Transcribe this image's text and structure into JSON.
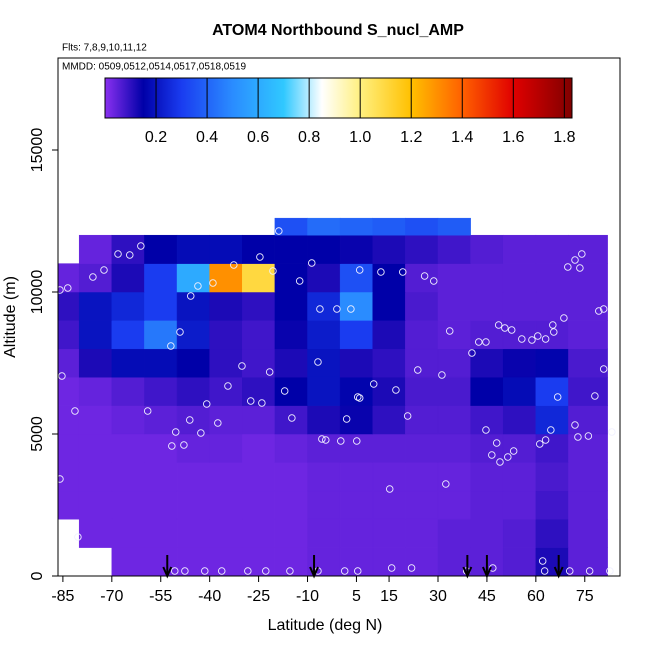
{
  "chart_data": {
    "type": "heatmap",
    "title": "ATOM4 Northbound S_nucl_AMP",
    "subtitle": "Flts: 7,8,9,10,11,12",
    "annotation": "MMDD: 0509,0512,0514,0517,0518,0519",
    "xlabel": "Latitude (deg N)",
    "ylabel": "Altitude (m)",
    "xlim": [
      -86.5,
      85.8
    ],
    "ylim": [
      0,
      18240
    ],
    "xticks": [
      -85,
      -70,
      -55,
      -40,
      -25,
      -10,
      5,
      15,
      30,
      45,
      60,
      75
    ],
    "yticks": [
      0,
      5000,
      10000,
      15000
    ],
    "x_edges": [
      -87,
      -80,
      -70,
      -60,
      -50,
      -40,
      -30,
      -20,
      -10,
      0,
      10,
      20,
      30,
      40,
      50,
      60,
      70,
      82
    ],
    "y_edges": [
      0,
      1000,
      2000,
      3000,
      4000,
      5000,
      6000,
      7000,
      8000,
      9000,
      10000,
      11000,
      12000,
      12600
    ],
    "z": [
      [
        null,
        null,
        0.03,
        0.03,
        0.03,
        0.03,
        0.03,
        0.03,
        0.04,
        0.04,
        0.04,
        0.04,
        0.05,
        0.05,
        0.06,
        0.12,
        0.05
      ],
      [
        null,
        0.03,
        0.03,
        0.03,
        0.03,
        0.03,
        0.03,
        0.03,
        0.04,
        0.04,
        0.04,
        0.04,
        0.05,
        0.05,
        0.06,
        0.1,
        0.05
      ],
      [
        0.03,
        0.03,
        0.03,
        0.03,
        0.03,
        0.03,
        0.03,
        0.03,
        0.04,
        0.04,
        0.04,
        0.04,
        0.04,
        0.05,
        0.05,
        0.08,
        0.05
      ],
      [
        0.03,
        0.03,
        0.03,
        0.03,
        0.03,
        0.03,
        0.03,
        0.03,
        0.04,
        0.04,
        0.04,
        0.04,
        0.04,
        0.05,
        0.05,
        0.07,
        0.05
      ],
      [
        0.03,
        0.03,
        0.03,
        0.03,
        0.04,
        0.04,
        0.03,
        0.04,
        0.05,
        0.05,
        0.05,
        0.05,
        0.05,
        0.06,
        0.06,
        0.08,
        0.05
      ],
      [
        0.03,
        0.03,
        0.04,
        0.05,
        0.06,
        0.05,
        0.05,
        0.08,
        0.12,
        0.14,
        0.1,
        0.06,
        0.06,
        0.08,
        0.1,
        0.25,
        0.06
      ],
      [
        0.03,
        0.04,
        0.06,
        0.08,
        0.1,
        0.08,
        0.1,
        0.15,
        0.2,
        0.16,
        0.12,
        0.07,
        0.07,
        0.15,
        0.18,
        0.3,
        0.08
      ],
      [
        0.05,
        0.12,
        0.18,
        0.18,
        0.15,
        0.1,
        0.08,
        0.12,
        0.2,
        0.12,
        0.1,
        0.06,
        0.06,
        0.12,
        0.14,
        0.16,
        0.07
      ],
      [
        0.08,
        0.2,
        0.3,
        0.45,
        0.22,
        0.1,
        0.08,
        0.14,
        0.22,
        0.3,
        0.12,
        0.06,
        0.05,
        0.06,
        0.06,
        0.06,
        0.05
      ],
      [
        0.1,
        0.2,
        0.25,
        0.3,
        0.2,
        0.12,
        0.1,
        0.15,
        0.25,
        0.5,
        0.15,
        0.07,
        0.05,
        0.05,
        0.05,
        0.05,
        0.05
      ],
      [
        0.04,
        0.06,
        0.12,
        0.3,
        0.6,
        1.3,
        1.1,
        0.15,
        0.12,
        0.35,
        0.15,
        0.06,
        0.05,
        0.05,
        0.05,
        0.05,
        0.05
      ],
      [
        null,
        0.04,
        0.1,
        0.15,
        0.18,
        0.18,
        0.15,
        0.15,
        0.15,
        0.14,
        0.12,
        0.1,
        0.08,
        0.06,
        0.05,
        0.05,
        0.05
      ],
      [
        null,
        null,
        null,
        null,
        null,
        null,
        null,
        0.35,
        0.42,
        0.4,
        0.38,
        0.35,
        0.38,
        null,
        null,
        null,
        null
      ]
    ],
    "colormap": [
      [
        0,
        "#8a30f0"
      ],
      [
        0.15,
        "#0000a8"
      ],
      [
        0.3,
        "#1a3cf0"
      ],
      [
        0.5,
        "#2a8cff"
      ],
      [
        0.7,
        "#30c8ff"
      ],
      [
        0.85,
        "#ffffff"
      ],
      [
        1.0,
        "#fff080"
      ],
      [
        1.2,
        "#ffc000"
      ],
      [
        1.4,
        "#ff6000"
      ],
      [
        1.6,
        "#e00000"
      ],
      [
        1.83,
        "#800000"
      ]
    ],
    "colorbar": {
      "lim": [
        0,
        1.83
      ],
      "ticks": [
        0.2,
        0.4,
        0.6,
        0.8,
        {
          "value": 1,
          "label": "1.0"
        },
        1.2,
        1.4,
        1.6,
        1.8
      ]
    },
    "points": {
      "x": [
        -50.7,
        -47.6,
        -41.5,
        -36.3,
        -28.3,
        -22.8,
        -15.4,
        -6.8,
        1.4,
        5.4,
        15.8,
        21.9,
        38.8,
        46.8,
        62.7,
        70.4,
        76.5,
        82.7,
        -80.4,
        -85.9,
        15.2,
        32.4,
        62.1,
        -81.3,
        -59,
        -51.6,
        -50.4,
        -47.9,
        -46.1,
        -42.7,
        -40.9,
        -37.5,
        -34.4,
        -30.1,
        -27.4,
        -24,
        -21.6,
        -17,
        -14.8,
        -6.8,
        -5.6,
        -4.4,
        0.2,
        2,
        5.1,
        5.4,
        10.3,
        17.1,
        20.7,
        23.8,
        31.2,
        44.7,
        46.5,
        48,
        49,
        51.4,
        53.2,
        61.2,
        63,
        64.6,
        66.7,
        72,
        72.9,
        76.1,
        78.1,
        80.8,
        83.3,
        -85.9,
        -83.5,
        -75.8,
        -72.4,
        -68.1,
        -64.5,
        -61.1,
        -51.9,
        -49.1,
        -45.8,
        -43.6,
        -39,
        -32.6,
        -24.6,
        -20.6,
        -18.8,
        -12.4,
        -8.7,
        -6.2,
        -1,
        3.3,
        6,
        6,
        12.5,
        19.2,
        25.9,
        28.7,
        33.6,
        40.4,
        42.5,
        44.7,
        48.6,
        50.5,
        52.6,
        55.7,
        58.8,
        60.6,
        63,
        65.2,
        65.5,
        68.6,
        69.8,
        72,
        73.5,
        74.1,
        79.3,
        80.8,
        -85.3
      ],
      "y": [
        176,
        176,
        176,
        176,
        176,
        176,
        176,
        176,
        176,
        176,
        282,
        282,
        176,
        282,
        176,
        176,
        176,
        176,
        1373,
        3415,
        3063,
        3239,
        528,
        5810,
        5810,
        4577,
        5070,
        4613,
        5493,
        5035,
        6056,
        5387,
        6690,
        7394,
        6162,
        6092,
        7183,
        6514,
        5563,
        7535,
        4824,
        4789,
        4754,
        5528,
        4754,
        6303,
        6761,
        6549,
        5634,
        7254,
        7077,
        5141,
        4261,
        4683,
        4014,
        4190,
        4401,
        4648,
        4789,
        5141,
        6303,
        5317,
        4894,
        4930,
        6338,
        7289,
        5070,
        10070,
        10141,
        10528,
        10775,
        11338,
        11303,
        11620,
        8099,
        8592,
        9859,
        10211,
        10317,
        10951,
        11232,
        10739,
        12148,
        10387,
        11021,
        9401,
        9401,
        9401,
        10775,
        6268,
        10704,
        10704,
        10563,
        10387,
        8627,
        7852,
        8239,
        8239,
        8838,
        8732,
        8662,
        8345,
        8310,
        8451,
        8345,
        8838,
        8592,
        9085,
        10880,
        11127,
        10845,
        11338,
        9331,
        9401,
        7042
      ]
    },
    "flight_markers": [
      -53,
      -8,
      39,
      45,
      67
    ]
  }
}
